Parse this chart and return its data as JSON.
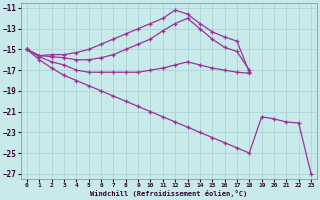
{
  "background_color": "#c8eaea",
  "grid_color": "#b0d8d8",
  "line_color": "#993399",
  "xlabel": "Windchill (Refroidissement éolien,°C)",
  "xlim": [
    -0.5,
    23.5
  ],
  "ylim": [
    -27.5,
    -10.5
  ],
  "yticks": [
    -27,
    -25,
    -23,
    -21,
    -19,
    -17,
    -15,
    -13,
    -11
  ],
  "xticks": [
    0,
    1,
    2,
    3,
    4,
    5,
    6,
    7,
    8,
    9,
    10,
    11,
    12,
    13,
    14,
    15,
    16,
    17,
    18,
    19,
    20,
    21,
    22,
    23
  ],
  "lines": [
    {
      "x": [
        0,
        1,
        2,
        3,
        4,
        5,
        6,
        7,
        8,
        9,
        10,
        11,
        12,
        13,
        14,
        15,
        16,
        17,
        18
      ],
      "y": [
        -15.0,
        -15.6,
        -15.5,
        -15.5,
        -15.3,
        -15.0,
        -14.5,
        -14.0,
        -13.5,
        -13.0,
        -12.5,
        -12.0,
        -11.2,
        -11.6,
        -12.5,
        -13.3,
        -13.8,
        -14.2,
        -17.2
      ]
    },
    {
      "x": [
        0,
        1,
        2,
        3,
        4,
        5,
        6,
        7,
        8,
        9,
        10,
        11,
        12,
        13,
        14,
        15,
        16,
        17,
        18
      ],
      "y": [
        -15.0,
        -15.6,
        -15.7,
        -15.8,
        -16.0,
        -16.0,
        -15.8,
        -15.5,
        -15.0,
        -14.5,
        -14.0,
        -13.2,
        -12.5,
        -12.0,
        -13.0,
        -14.0,
        -14.8,
        -15.2,
        -17.0
      ]
    },
    {
      "x": [
        0,
        1,
        2,
        3,
        4,
        5,
        6,
        7,
        8,
        9,
        10,
        11,
        12,
        13,
        14,
        15,
        16,
        17,
        18
      ],
      "y": [
        -15.0,
        -15.7,
        -16.2,
        -16.5,
        -17.0,
        -17.2,
        -17.2,
        -17.2,
        -17.2,
        -17.2,
        -17.0,
        -16.8,
        -16.5,
        -16.2,
        -16.5,
        -16.8,
        -17.0,
        -17.2,
        -17.3
      ]
    },
    {
      "x": [
        0,
        1,
        2,
        3,
        4,
        5,
        6,
        7,
        8,
        9,
        10,
        11,
        12,
        13,
        14,
        15,
        16,
        17,
        18,
        19,
        20,
        21,
        22,
        23
      ],
      "y": [
        -15.0,
        -16.0,
        -16.8,
        -17.5,
        -18.0,
        -18.5,
        -19.0,
        -19.5,
        -20.0,
        -20.5,
        -21.0,
        -21.5,
        -22.0,
        -22.5,
        -23.0,
        -23.5,
        -24.0,
        -24.5,
        -25.0,
        -21.5,
        -21.7,
        -22.0,
        -22.1,
        -27.0
      ]
    }
  ]
}
